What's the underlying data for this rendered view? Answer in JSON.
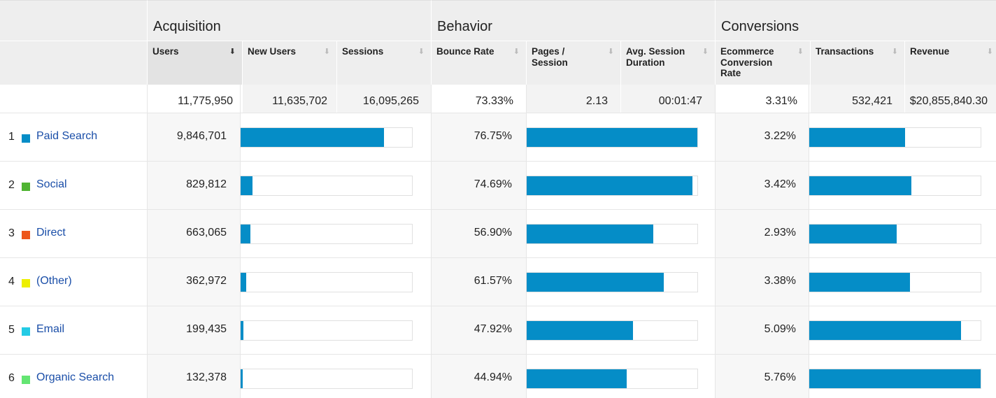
{
  "groups": {
    "acquisition": "Acquisition",
    "behavior": "Behavior",
    "conversions": "Conversions"
  },
  "columns": {
    "users": "Users",
    "new_users": "New Users",
    "sessions": "Sessions",
    "bounce_rate": "Bounce Rate",
    "pages_session": "Pages / Session",
    "avg_session": "Avg. Session Duration",
    "ecom_rate": "Ecommerce Conversion Rate",
    "transactions": "Transactions",
    "revenue": "Revenue"
  },
  "totals": {
    "users": "11,775,950",
    "new_users": "11,635,702",
    "sessions": "16,095,265",
    "bounce_rate": "73.33%",
    "pages_session": "2.13",
    "avg_session": "00:01:47",
    "ecom_rate": "3.31%",
    "transactions": "532,421",
    "revenue": "$20,855,840.30"
  },
  "rows": [
    {
      "num": "1",
      "channel": "Paid Search",
      "color": "#058dc7",
      "users": "9,846,701",
      "users_frac": 0.836,
      "bounce": "76.75%",
      "bounce_frac": 1.0,
      "ecom": "3.22%",
      "ecom_frac": 0.559
    },
    {
      "num": "2",
      "channel": "Social",
      "color": "#50b432",
      "users": "829,812",
      "users_frac": 0.07,
      "bounce": "74.69%",
      "bounce_frac": 0.973,
      "ecom": "3.42%",
      "ecom_frac": 0.594
    },
    {
      "num": "3",
      "channel": "Direct",
      "color": "#ed561b",
      "users": "663,065",
      "users_frac": 0.056,
      "bounce": "56.90%",
      "bounce_frac": 0.741,
      "ecom": "2.93%",
      "ecom_frac": 0.509
    },
    {
      "num": "4",
      "channel": "(Other)",
      "color": "#edef00",
      "users": "362,972",
      "users_frac": 0.031,
      "bounce": "61.57%",
      "bounce_frac": 0.802,
      "ecom": "3.38%",
      "ecom_frac": 0.587
    },
    {
      "num": "5",
      "channel": "Email",
      "color": "#24cbe5",
      "users": "199,435",
      "users_frac": 0.017,
      "bounce": "47.92%",
      "bounce_frac": 0.624,
      "ecom": "5.09%",
      "ecom_frac": 0.884
    },
    {
      "num": "6",
      "channel": "Organic Search",
      "color": "#64e572",
      "users": "132,378",
      "users_frac": 0.011,
      "bounce": "44.94%",
      "bounce_frac": 0.586,
      "ecom": "5.76%",
      "ecom_frac": 1.0
    }
  ]
}
